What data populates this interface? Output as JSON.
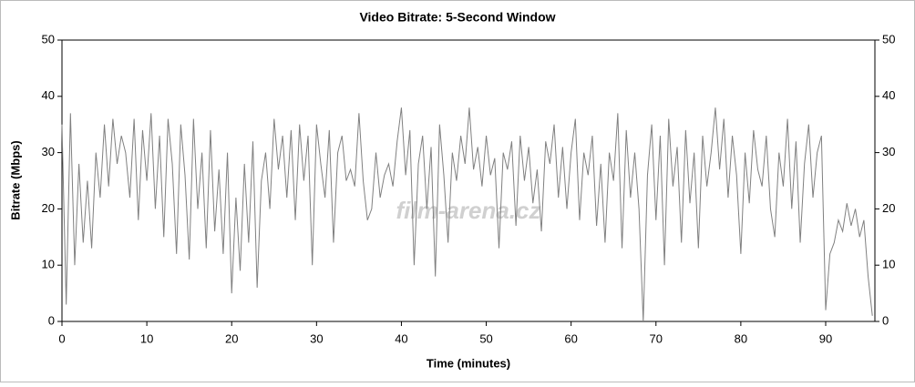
{
  "chart_data": {
    "type": "line",
    "title": "Video Bitrate: 5-Second Window",
    "x_label": "Time (minutes)",
    "y_label": "Bitrate (Mbps)",
    "watermark": "film-arena.cz",
    "xlim": [
      0,
      95.8
    ],
    "xticks": [
      0,
      10,
      20,
      30,
      40,
      50,
      60,
      70,
      80,
      90
    ],
    "ylim": [
      0,
      50
    ],
    "yticks": [
      0,
      10,
      20,
      30,
      40,
      50
    ],
    "x": [
      0,
      0.5,
      1,
      1.5,
      2,
      2.5,
      3,
      3.5,
      4,
      4.5,
      5,
      5.5,
      6,
      6.5,
      7,
      7.5,
      8,
      8.5,
      9,
      9.5,
      10,
      10.5,
      11,
      11.5,
      12,
      12.5,
      13,
      13.5,
      14,
      14.5,
      15,
      15.5,
      16,
      16.5,
      17,
      17.5,
      18,
      18.5,
      19,
      19.5,
      20,
      20.5,
      21,
      21.5,
      22,
      22.5,
      23,
      23.5,
      24,
      24.5,
      25,
      25.5,
      26,
      26.5,
      27,
      27.5,
      28,
      28.5,
      29,
      29.5,
      30,
      30.5,
      31,
      31.5,
      32,
      32.5,
      33,
      33.5,
      34,
      34.5,
      35,
      35.5,
      36,
      36.5,
      37,
      37.5,
      38,
      38.5,
      39,
      39.5,
      40,
      40.5,
      41,
      41.5,
      42,
      42.5,
      43,
      43.5,
      44,
      44.5,
      45,
      45.5,
      46,
      46.5,
      47,
      47.5,
      48,
      48.5,
      49,
      49.5,
      50,
      50.5,
      51,
      51.5,
      52,
      52.5,
      53,
      53.5,
      54,
      54.5,
      55,
      55.5,
      56,
      56.5,
      57,
      57.5,
      58,
      58.5,
      59,
      59.5,
      60,
      60.5,
      61,
      61.5,
      62,
      62.5,
      63,
      63.5,
      64,
      64.5,
      65,
      65.5,
      66,
      66.5,
      67,
      67.5,
      68,
      68.5,
      69,
      69.5,
      70,
      70.5,
      71,
      71.5,
      72,
      72.5,
      73,
      73.5,
      74,
      74.5,
      75,
      75.5,
      76,
      76.5,
      77,
      77.5,
      78,
      78.5,
      79,
      79.5,
      80,
      80.5,
      81,
      81.5,
      82,
      82.5,
      83,
      83.5,
      84,
      84.5,
      85,
      85.5,
      86,
      86.5,
      87,
      87.5,
      88,
      88.5,
      89,
      89.5,
      90,
      90.5,
      91,
      91.5,
      92,
      92.5,
      93,
      93.5,
      94,
      94.5,
      95,
      95.5
    ],
    "series": [
      {
        "name": "Bitrate",
        "color": "#808080",
        "values": [
          35,
          3,
          37,
          10,
          28,
          14,
          25,
          13,
          30,
          22,
          35,
          24,
          36,
          28,
          33,
          30,
          22,
          36,
          18,
          34,
          25,
          37,
          20,
          33,
          15,
          36,
          28,
          12,
          35,
          26,
          11,
          36,
          20,
          30,
          13,
          34,
          16,
          27,
          12,
          30,
          5,
          22,
          9,
          28,
          14,
          32,
          6,
          25,
          30,
          20,
          36,
          27,
          33,
          22,
          34,
          18,
          35,
          25,
          33,
          10,
          35,
          28,
          22,
          34,
          14,
          30,
          33,
          25,
          27,
          24,
          37,
          25,
          18,
          20,
          30,
          22,
          26,
          28,
          24,
          32,
          38,
          26,
          34,
          10,
          28,
          33,
          20,
          31,
          8,
          35,
          26,
          14,
          30,
          25,
          33,
          28,
          38,
          27,
          31,
          24,
          33,
          26,
          29,
          13,
          30,
          27,
          32,
          17,
          33,
          25,
          31,
          21,
          27,
          16,
          32,
          28,
          35,
          22,
          31,
          20,
          30,
          36,
          18,
          30,
          26,
          33,
          17,
          28,
          14,
          30,
          25,
          37,
          13,
          34,
          22,
          30,
          20,
          0,
          26,
          35,
          18,
          33,
          10,
          36,
          24,
          31,
          14,
          34,
          21,
          30,
          13,
          33,
          24,
          30,
          38,
          27,
          36,
          22,
          33,
          26,
          12,
          30,
          21,
          34,
          27,
          24,
          33,
          20,
          15,
          30,
          24,
          36,
          20,
          32,
          14,
          28,
          35,
          22,
          30,
          33,
          2,
          12,
          14,
          18,
          16,
          21,
          17,
          20,
          15,
          18,
          8,
          1
        ]
      }
    ]
  }
}
